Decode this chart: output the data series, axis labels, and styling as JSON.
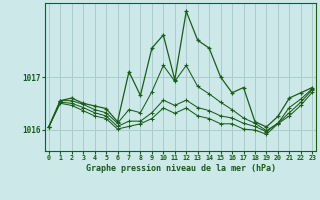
{
  "title": "Graphe pression niveau de la mer (hPa)",
  "bg_color": "#cce8e8",
  "grid_color": "#aacccc",
  "line_color": "#1a5c1a",
  "yticks": [
    1016,
    1017
  ],
  "ylim": [
    1015.6,
    1018.4
  ],
  "xlim": [
    -0.3,
    23.3
  ],
  "series": [
    [
      1016.05,
      1016.55,
      1016.6,
      1016.5,
      1016.45,
      1016.4,
      1016.15,
      1017.1,
      1016.65,
      1017.55,
      1017.8,
      1016.95,
      1018.25,
      1017.7,
      1017.55,
      1017.0,
      1016.7,
      1016.8,
      1016.15,
      1016.05,
      1016.25,
      1016.6,
      1016.7,
      1016.8
    ],
    [
      1016.05,
      1016.55,
      1016.55,
      1016.48,
      1016.38,
      1016.32,
      1016.12,
      1016.38,
      1016.32,
      1016.72,
      1017.22,
      1016.92,
      1017.22,
      1016.82,
      1016.68,
      1016.52,
      1016.38,
      1016.22,
      1016.12,
      1015.98,
      1016.12,
      1016.42,
      1016.58,
      1016.78
    ],
    [
      1016.05,
      1016.52,
      1016.5,
      1016.42,
      1016.32,
      1016.26,
      1016.06,
      1016.16,
      1016.16,
      1016.32,
      1016.56,
      1016.46,
      1016.56,
      1016.42,
      1016.36,
      1016.26,
      1016.22,
      1016.12,
      1016.06,
      1015.96,
      1016.12,
      1016.32,
      1016.52,
      1016.76
    ],
    [
      1016.05,
      1016.5,
      1016.46,
      1016.36,
      1016.26,
      1016.21,
      1016.01,
      1016.06,
      1016.11,
      1016.21,
      1016.41,
      1016.31,
      1016.41,
      1016.26,
      1016.21,
      1016.11,
      1016.11,
      1016.01,
      1015.99,
      1015.91,
      1016.11,
      1016.26,
      1016.46,
      1016.71
    ]
  ]
}
